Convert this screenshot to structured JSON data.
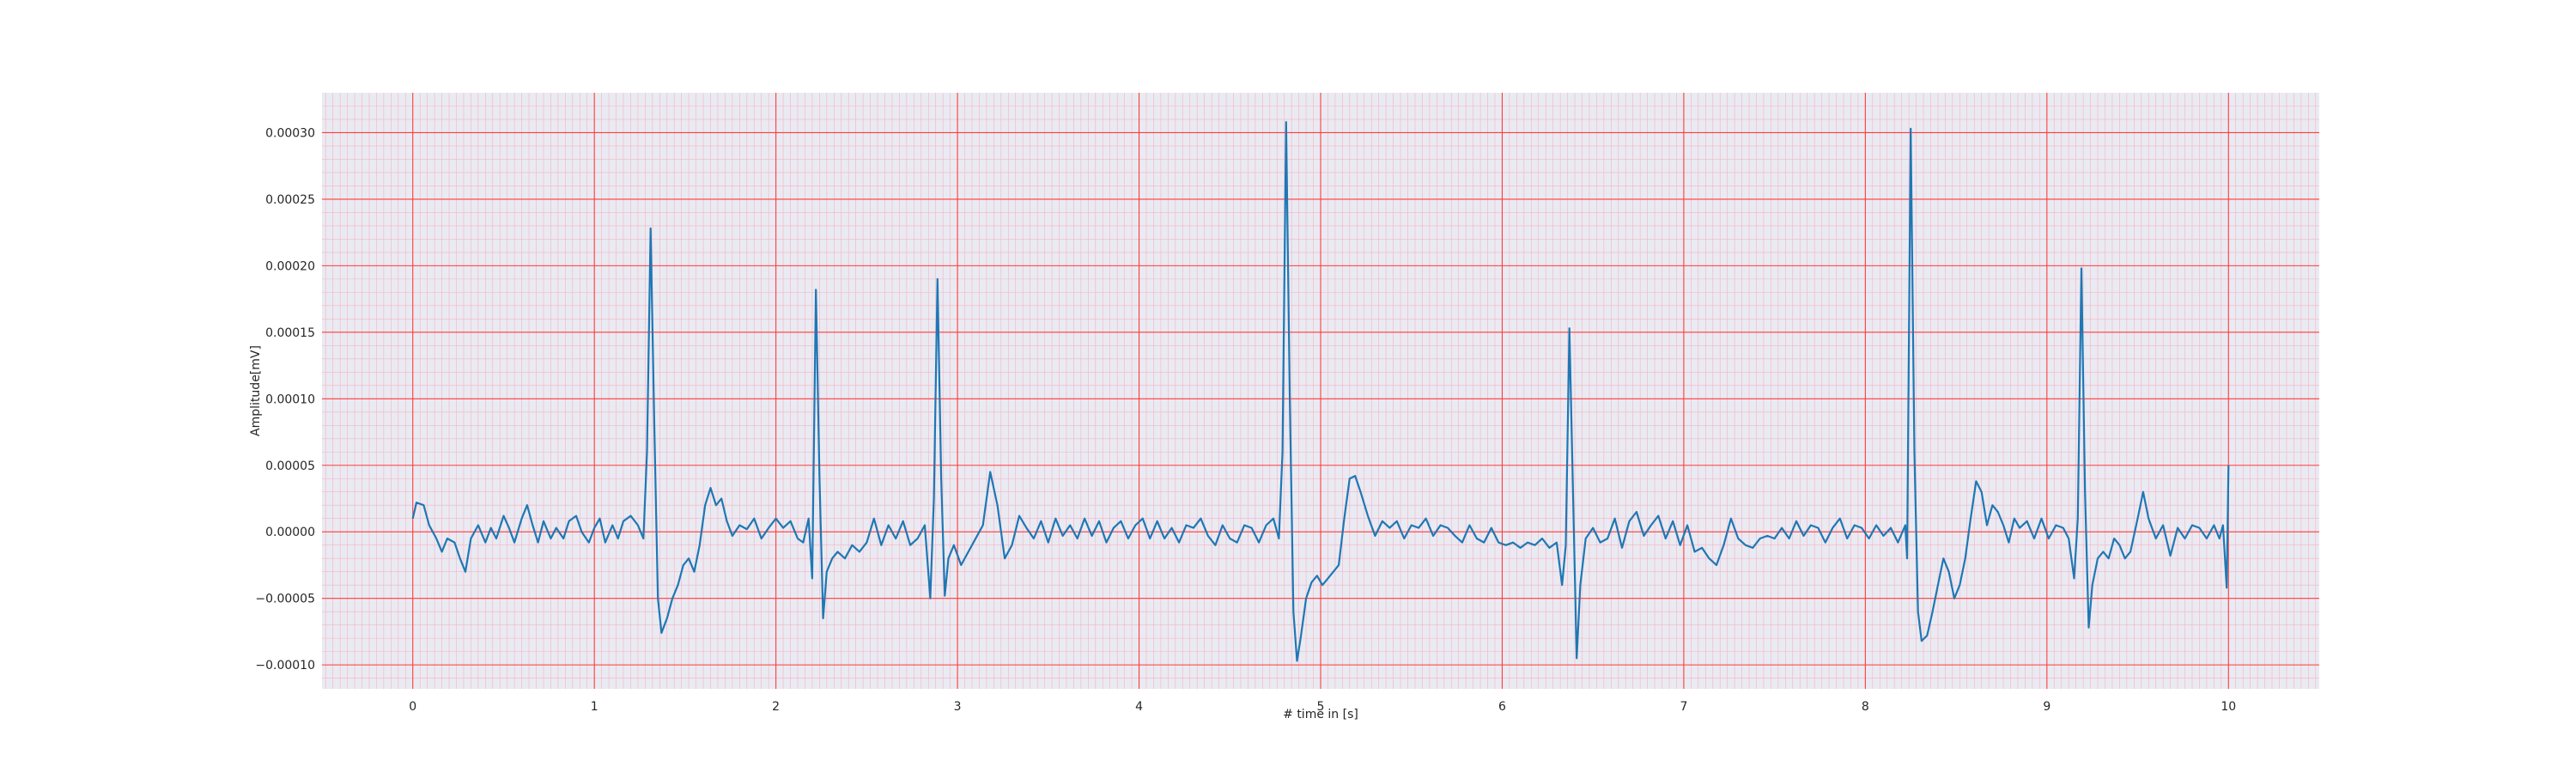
{
  "chart_data": {
    "type": "line",
    "title": "",
    "xlabel": "# time in [s]",
    "ylabel": "Amplitude[mV]",
    "xlim": [
      -0.5,
      10.5
    ],
    "ylim": [
      -0.000118,
      0.00033
    ],
    "x_ticks": [
      0,
      1,
      2,
      3,
      4,
      5,
      6,
      7,
      8,
      9,
      10
    ],
    "x_tick_labels": [
      "0",
      "1",
      "2",
      "3",
      "4",
      "5",
      "6",
      "7",
      "8",
      "9",
      "10"
    ],
    "y_ticks": [
      -0.0001,
      -5e-05,
      0,
      5e-05,
      0.0001,
      0.00015,
      0.0002,
      0.00025,
      0.0003
    ],
    "y_tick_labels": [
      "−0.00010",
      "−0.00005",
      "0.00000",
      "0.00005",
      "0.00010",
      "0.00015",
      "0.00020",
      "0.00025",
      "0.00030"
    ],
    "grid": true,
    "minor_grid": true,
    "legend": "none",
    "colors": {
      "plot_background": "#eaeaf2",
      "major_grid": "#ff3b3b",
      "minor_grid": "#f4b3c3",
      "line": "#1f77b4"
    },
    "series": [
      {
        "values": [
          [
            0.0,
            1e-05
          ],
          [
            0.02,
            2.2e-05
          ],
          [
            0.06,
            2e-05
          ],
          [
            0.09,
            5e-06
          ],
          [
            0.13,
            -5e-06
          ],
          [
            0.16,
            -1.5e-05
          ],
          [
            0.19,
            -5e-06
          ],
          [
            0.23,
            -8e-06
          ],
          [
            0.26,
            -2e-05
          ],
          [
            0.29,
            -3e-05
          ],
          [
            0.32,
            -5e-06
          ],
          [
            0.36,
            5e-06
          ],
          [
            0.4,
            -8e-06
          ],
          [
            0.43,
            3e-06
          ],
          [
            0.46,
            -5e-06
          ],
          [
            0.5,
            1.2e-05
          ],
          [
            0.53,
            3e-06
          ],
          [
            0.56,
            -8e-06
          ],
          [
            0.6,
            1e-05
          ],
          [
            0.63,
            2e-05
          ],
          [
            0.66,
            5e-06
          ],
          [
            0.69,
            -8e-06
          ],
          [
            0.72,
            8e-06
          ],
          [
            0.76,
            -5e-06
          ],
          [
            0.79,
            3e-06
          ],
          [
            0.83,
            -5e-06
          ],
          [
            0.86,
            8e-06
          ],
          [
            0.9,
            1.2e-05
          ],
          [
            0.93,
            0.0
          ],
          [
            0.97,
            -8e-06
          ],
          [
            1.0,
            3e-06
          ],
          [
            1.03,
            1e-05
          ],
          [
            1.06,
            -8e-06
          ],
          [
            1.1,
            5e-06
          ],
          [
            1.13,
            -5e-06
          ],
          [
            1.16,
            8e-06
          ],
          [
            1.2,
            1.2e-05
          ],
          [
            1.24,
            5e-06
          ],
          [
            1.27,
            -5e-06
          ],
          [
            1.29,
            6e-05
          ],
          [
            1.31,
            0.000228
          ],
          [
            1.33,
            8e-05
          ],
          [
            1.35,
            -5e-05
          ],
          [
            1.37,
            -7.6e-05
          ],
          [
            1.4,
            -6.5e-05
          ],
          [
            1.43,
            -5e-05
          ],
          [
            1.46,
            -4e-05
          ],
          [
            1.49,
            -2.5e-05
          ],
          [
            1.52,
            -2e-05
          ],
          [
            1.55,
            -3e-05
          ],
          [
            1.58,
            -1e-05
          ],
          [
            1.61,
            2e-05
          ],
          [
            1.64,
            3.3e-05
          ],
          [
            1.67,
            2e-05
          ],
          [
            1.7,
            2.5e-05
          ],
          [
            1.73,
            8e-06
          ],
          [
            1.76,
            -3e-06
          ],
          [
            1.8,
            5e-06
          ],
          [
            1.84,
            2e-06
          ],
          [
            1.88,
            1e-05
          ],
          [
            1.92,
            -5e-06
          ],
          [
            1.96,
            3e-06
          ],
          [
            2.0,
            1e-05
          ],
          [
            2.04,
            3e-06
          ],
          [
            2.08,
            8e-06
          ],
          [
            2.12,
            -5e-06
          ],
          [
            2.15,
            -8e-06
          ],
          [
            2.18,
            1e-05
          ],
          [
            2.2,
            -3.5e-05
          ],
          [
            2.22,
            0.000182
          ],
          [
            2.24,
            4e-05
          ],
          [
            2.26,
            -6.5e-05
          ],
          [
            2.28,
            -3e-05
          ],
          [
            2.31,
            -2e-05
          ],
          [
            2.34,
            -1.5e-05
          ],
          [
            2.38,
            -2e-05
          ],
          [
            2.42,
            -1e-05
          ],
          [
            2.46,
            -1.5e-05
          ],
          [
            2.5,
            -8e-06
          ],
          [
            2.54,
            1e-05
          ],
          [
            2.58,
            -1e-05
          ],
          [
            2.62,
            5e-06
          ],
          [
            2.66,
            -5e-06
          ],
          [
            2.7,
            8e-06
          ],
          [
            2.74,
            -1e-05
          ],
          [
            2.78,
            -5e-06
          ],
          [
            2.82,
            5e-06
          ],
          [
            2.85,
            -5e-05
          ],
          [
            2.87,
            2.5e-05
          ],
          [
            2.89,
            0.00019
          ],
          [
            2.91,
            4e-05
          ],
          [
            2.93,
            -4.8e-05
          ],
          [
            2.95,
            -2e-05
          ],
          [
            2.98,
            -1e-05
          ],
          [
            3.02,
            -2.5e-05
          ],
          [
            3.06,
            -1.5e-05
          ],
          [
            3.1,
            -5e-06
          ],
          [
            3.14,
            5e-06
          ],
          [
            3.18,
            4.5e-05
          ],
          [
            3.22,
            2e-05
          ],
          [
            3.26,
            -2e-05
          ],
          [
            3.3,
            -1e-05
          ],
          [
            3.34,
            1.2e-05
          ],
          [
            3.38,
            3e-06
          ],
          [
            3.42,
            -5e-06
          ],
          [
            3.46,
            8e-06
          ],
          [
            3.5,
            -8e-06
          ],
          [
            3.54,
            1e-05
          ],
          [
            3.58,
            -3e-06
          ],
          [
            3.62,
            5e-06
          ],
          [
            3.66,
            -5e-06
          ],
          [
            3.7,
            1e-05
          ],
          [
            3.74,
            -3e-06
          ],
          [
            3.78,
            8e-06
          ],
          [
            3.82,
            -8e-06
          ],
          [
            3.86,
            3e-06
          ],
          [
            3.9,
            8e-06
          ],
          [
            3.94,
            -5e-06
          ],
          [
            3.98,
            5e-06
          ],
          [
            4.02,
            1e-05
          ],
          [
            4.06,
            -5e-06
          ],
          [
            4.1,
            8e-06
          ],
          [
            4.14,
            -5e-06
          ],
          [
            4.18,
            3e-06
          ],
          [
            4.22,
            -8e-06
          ],
          [
            4.26,
            5e-06
          ],
          [
            4.3,
            3e-06
          ],
          [
            4.34,
            1e-05
          ],
          [
            4.38,
            -3e-06
          ],
          [
            4.42,
            -1e-05
          ],
          [
            4.46,
            5e-06
          ],
          [
            4.5,
            -5e-06
          ],
          [
            4.54,
            -8e-06
          ],
          [
            4.58,
            5e-06
          ],
          [
            4.62,
            3e-06
          ],
          [
            4.66,
            -8e-06
          ],
          [
            4.7,
            5e-06
          ],
          [
            4.74,
            1e-05
          ],
          [
            4.77,
            -5e-06
          ],
          [
            4.79,
            6e-05
          ],
          [
            4.81,
            0.000308
          ],
          [
            4.83,
            0.0001
          ],
          [
            4.85,
            -6e-05
          ],
          [
            4.87,
            -9.7e-05
          ],
          [
            4.89,
            -8e-05
          ],
          [
            4.92,
            -5e-05
          ],
          [
            4.95,
            -3.8e-05
          ],
          [
            4.98,
            -3.3e-05
          ],
          [
            5.01,
            -4e-05
          ],
          [
            5.04,
            -3.5e-05
          ],
          [
            5.07,
            -3e-05
          ],
          [
            5.1,
            -2.5e-05
          ],
          [
            5.13,
            1e-05
          ],
          [
            5.16,
            4e-05
          ],
          [
            5.19,
            4.2e-05
          ],
          [
            5.22,
            3e-05
          ],
          [
            5.26,
            1.2e-05
          ],
          [
            5.3,
            -3e-06
          ],
          [
            5.34,
            8e-06
          ],
          [
            5.38,
            3e-06
          ],
          [
            5.42,
            8e-06
          ],
          [
            5.46,
            -5e-06
          ],
          [
            5.5,
            5e-06
          ],
          [
            5.54,
            3e-06
          ],
          [
            5.58,
            1e-05
          ],
          [
            5.62,
            -3e-06
          ],
          [
            5.66,
            5e-06
          ],
          [
            5.7,
            3e-06
          ],
          [
            5.74,
            -3e-06
          ],
          [
            5.78,
            -8e-06
          ],
          [
            5.82,
            5e-06
          ],
          [
            5.86,
            -5e-06
          ],
          [
            5.9,
            -8e-06
          ],
          [
            5.94,
            3e-06
          ],
          [
            5.98,
            -8e-06
          ],
          [
            6.02,
            -1e-05
          ],
          [
            6.06,
            -8e-06
          ],
          [
            6.1,
            -1.2e-05
          ],
          [
            6.14,
            -8e-06
          ],
          [
            6.18,
            -1e-05
          ],
          [
            6.22,
            -5e-06
          ],
          [
            6.26,
            -1.2e-05
          ],
          [
            6.3,
            -8e-06
          ],
          [
            6.33,
            -4e-05
          ],
          [
            6.35,
            -1e-05
          ],
          [
            6.37,
            0.000153
          ],
          [
            6.39,
            3e-05
          ],
          [
            6.41,
            -9.5e-05
          ],
          [
            6.43,
            -4e-05
          ],
          [
            6.46,
            -5e-06
          ],
          [
            6.5,
            3e-06
          ],
          [
            6.54,
            -8e-06
          ],
          [
            6.58,
            -5e-06
          ],
          [
            6.62,
            1e-05
          ],
          [
            6.66,
            -1.2e-05
          ],
          [
            6.7,
            8e-06
          ],
          [
            6.74,
            1.5e-05
          ],
          [
            6.78,
            -3e-06
          ],
          [
            6.82,
            5e-06
          ],
          [
            6.86,
            1.2e-05
          ],
          [
            6.9,
            -5e-06
          ],
          [
            6.94,
            8e-06
          ],
          [
            6.98,
            -1e-05
          ],
          [
            7.02,
            5e-06
          ],
          [
            7.06,
            -1.5e-05
          ],
          [
            7.1,
            -1.2e-05
          ],
          [
            7.14,
            -2e-05
          ],
          [
            7.18,
            -2.5e-05
          ],
          [
            7.22,
            -1e-05
          ],
          [
            7.26,
            1e-05
          ],
          [
            7.3,
            -5e-06
          ],
          [
            7.34,
            -1e-05
          ],
          [
            7.38,
            -1.2e-05
          ],
          [
            7.42,
            -5e-06
          ],
          [
            7.46,
            -3e-06
          ],
          [
            7.5,
            -5e-06
          ],
          [
            7.54,
            3e-06
          ],
          [
            7.58,
            -5e-06
          ],
          [
            7.62,
            8e-06
          ],
          [
            7.66,
            -3e-06
          ],
          [
            7.7,
            5e-06
          ],
          [
            7.74,
            3e-06
          ],
          [
            7.78,
            -8e-06
          ],
          [
            7.82,
            3e-06
          ],
          [
            7.86,
            1e-05
          ],
          [
            7.9,
            -5e-06
          ],
          [
            7.94,
            5e-06
          ],
          [
            7.98,
            3e-06
          ],
          [
            8.02,
            -5e-06
          ],
          [
            8.06,
            5e-06
          ],
          [
            8.1,
            -3e-06
          ],
          [
            8.14,
            3e-06
          ],
          [
            8.18,
            -8e-06
          ],
          [
            8.22,
            5e-06
          ],
          [
            8.23,
            -2e-05
          ],
          [
            8.25,
            0.000303
          ],
          [
            8.27,
            6e-05
          ],
          [
            8.29,
            -6e-05
          ],
          [
            8.31,
            -8.2e-05
          ],
          [
            8.34,
            -7.8e-05
          ],
          [
            8.37,
            -6e-05
          ],
          [
            8.4,
            -4e-05
          ],
          [
            8.43,
            -2e-05
          ],
          [
            8.46,
            -3e-05
          ],
          [
            8.49,
            -5e-05
          ],
          [
            8.52,
            -4e-05
          ],
          [
            8.55,
            -2e-05
          ],
          [
            8.58,
            1e-05
          ],
          [
            8.61,
            3.8e-05
          ],
          [
            8.64,
            3e-05
          ],
          [
            8.67,
            5e-06
          ],
          [
            8.7,
            2e-05
          ],
          [
            8.73,
            1.5e-05
          ],
          [
            8.76,
            5e-06
          ],
          [
            8.79,
            -8e-06
          ],
          [
            8.82,
            1e-05
          ],
          [
            8.85,
            3e-06
          ],
          [
            8.89,
            8e-06
          ],
          [
            8.93,
            -5e-06
          ],
          [
            8.97,
            1e-05
          ],
          [
            9.01,
            -5e-06
          ],
          [
            9.05,
            5e-06
          ],
          [
            9.09,
            3e-06
          ],
          [
            9.12,
            -5e-06
          ],
          [
            9.15,
            -3.5e-05
          ],
          [
            9.17,
            1e-05
          ],
          [
            9.19,
            0.000198
          ],
          [
            9.21,
            3e-05
          ],
          [
            9.23,
            -7.2e-05
          ],
          [
            9.25,
            -4e-05
          ],
          [
            9.28,
            -2e-05
          ],
          [
            9.31,
            -1.5e-05
          ],
          [
            9.34,
            -2e-05
          ],
          [
            9.37,
            -5e-06
          ],
          [
            9.4,
            -1e-05
          ],
          [
            9.43,
            -2e-05
          ],
          [
            9.46,
            -1.5e-05
          ],
          [
            9.5,
            1e-05
          ],
          [
            9.53,
            3e-05
          ],
          [
            9.56,
            1e-05
          ],
          [
            9.6,
            -5e-06
          ],
          [
            9.64,
            5e-06
          ],
          [
            9.68,
            -1.8e-05
          ],
          [
            9.72,
            3e-06
          ],
          [
            9.76,
            -5e-06
          ],
          [
            9.8,
            5e-06
          ],
          [
            9.84,
            3e-06
          ],
          [
            9.88,
            -5e-06
          ],
          [
            9.92,
            5e-06
          ],
          [
            9.95,
            -5e-06
          ],
          [
            9.97,
            5e-06
          ],
          [
            9.99,
            -4.2e-05
          ],
          [
            10.0,
            5e-05
          ]
        ]
      }
    ]
  }
}
